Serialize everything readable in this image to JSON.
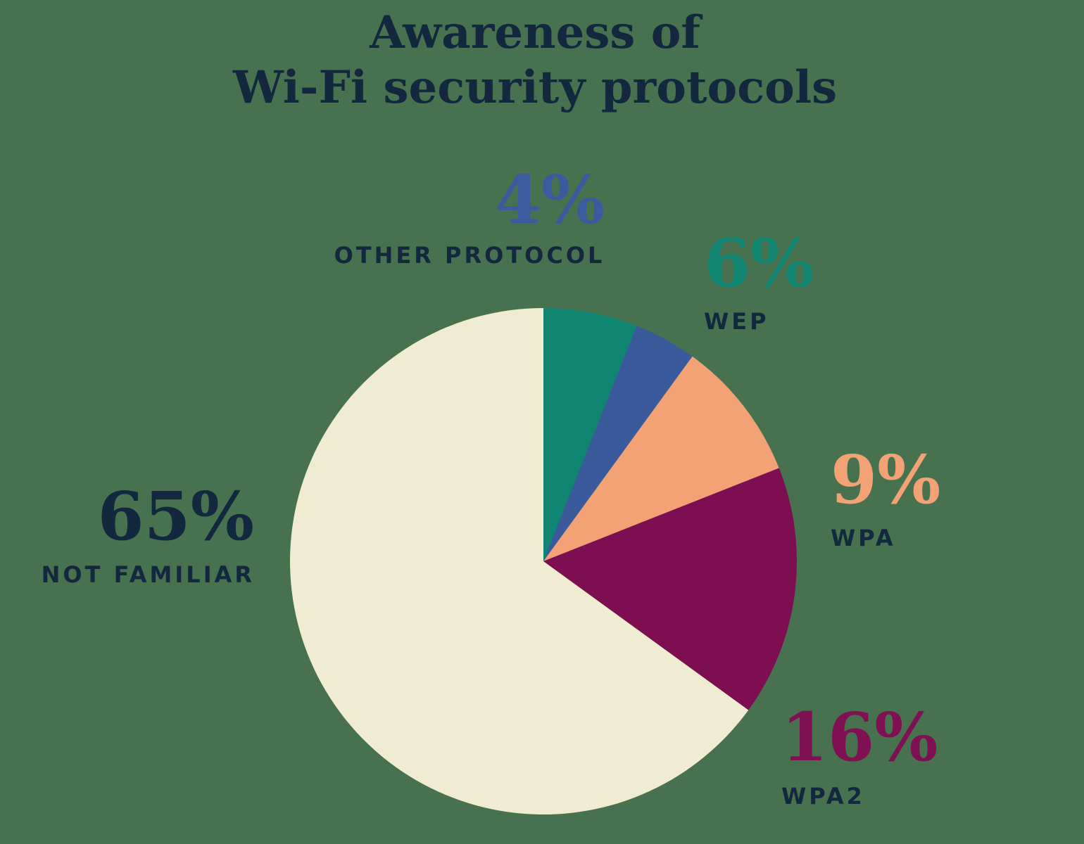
{
  "title": {
    "line1": "Awareness of",
    "line2": "Wi-Fi security protocols"
  },
  "chart_data": {
    "type": "pie",
    "title": "Awareness of Wi-Fi security protocols",
    "start_angle_deg": 0,
    "direction": "clockwise",
    "legend_position": "around",
    "slices": [
      {
        "label": "WEP",
        "value": 6,
        "color": "#108672"
      },
      {
        "label": "OTHER PROTOCOL",
        "value": 4,
        "color": "#3A5A9C"
      },
      {
        "label": "WPA",
        "value": 9,
        "color": "#F3A276"
      },
      {
        "label": "WPA2",
        "value": 16,
        "color": "#7D0E52"
      },
      {
        "label": "NOT FAMILIAR",
        "value": 65,
        "color": "#F0ECD2"
      }
    ]
  },
  "labels": {
    "other_protocol": {
      "pct": "4%",
      "name": "OTHER PROTOCOL",
      "color": "#3B5B9E"
    },
    "wep": {
      "pct": "6%",
      "name": "WEP",
      "color": "#108672"
    },
    "wpa": {
      "pct": "9%",
      "name": "WPA",
      "color": "#F3A276"
    },
    "wpa2": {
      "pct": "16%",
      "name": "WPA2",
      "color": "#7E1053"
    },
    "not_familiar": {
      "pct": "65%",
      "name": "NOT FAMILIAR",
      "color": "#13283F"
    }
  },
  "colors": {
    "background": "#48724F",
    "text": "#13283F"
  }
}
